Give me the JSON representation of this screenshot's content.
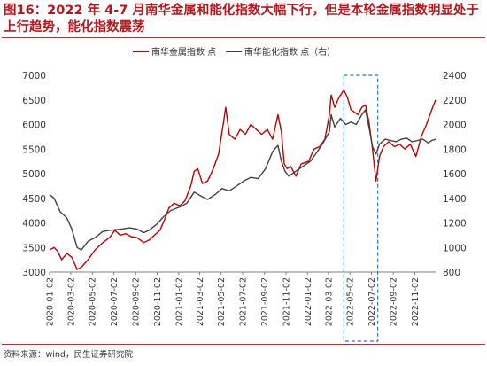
{
  "title": "图16：2022 年 4-7 月南华金属和能化指数大幅下行，但是本轮金属指数明显处于上行趋势，能化指数震荡",
  "source": "资料来源：wind，民生证券研究院",
  "chart_data": {
    "type": "line",
    "title": "图16：2022 年 4-7 月南华金属和能化指数大幅下行，但是本轮金属指数明显处于上行趋势，能化指数震荡",
    "xlabel": "",
    "ylabel": "",
    "x_ticks": [
      "2020-01-02",
      "2020-03-02",
      "2020-05-02",
      "2020-07-02",
      "2020-09-02",
      "2020-11-02",
      "2021-01-02",
      "2021-03-02",
      "2021-05-02",
      "2021-07-02",
      "2021-09-02",
      "2021-11-02",
      "2022-01-02",
      "2022-03-02",
      "2022-05-02",
      "2022-07-02",
      "2022-09-02",
      "2022-11-02"
    ],
    "x_range": [
      "2020-01-02",
      "2022-12-31"
    ],
    "y_left": {
      "ticks": [
        3000,
        3500,
        4000,
        4500,
        5000,
        5500,
        6000,
        6500,
        7000
      ],
      "range": [
        3000,
        7000
      ]
    },
    "y_right": {
      "ticks": [
        800,
        1000,
        1200,
        1400,
        1600,
        1800,
        2000,
        2200,
        2400
      ],
      "range": [
        800,
        2400
      ]
    },
    "grid": false,
    "legend_placement": "top",
    "highlight_box": {
      "x_start": "2022-04-15",
      "x_end": "2022-07-20",
      "color": "#2e75b6",
      "style": "dashed"
    },
    "series": [
      {
        "name": "南华金属指数 点",
        "axis": "left",
        "color": "#c00000",
        "points": [
          [
            "2020-01-02",
            3450
          ],
          [
            "2020-01-15",
            3500
          ],
          [
            "2020-01-25",
            3420
          ],
          [
            "2020-02-05",
            3250
          ],
          [
            "2020-02-20",
            3380
          ],
          [
            "2020-03-05",
            3300
          ],
          [
            "2020-03-20",
            3050
          ],
          [
            "2020-04-01",
            3100
          ],
          [
            "2020-04-20",
            3250
          ],
          [
            "2020-05-10",
            3450
          ],
          [
            "2020-06-01",
            3600
          ],
          [
            "2020-06-20",
            3700
          ],
          [
            "2020-07-05",
            3850
          ],
          [
            "2020-07-20",
            3750
          ],
          [
            "2020-08-05",
            3780
          ],
          [
            "2020-08-20",
            3720
          ],
          [
            "2020-09-05",
            3700
          ],
          [
            "2020-09-25",
            3600
          ],
          [
            "2020-10-10",
            3650
          ],
          [
            "2020-10-25",
            3750
          ],
          [
            "2020-11-10",
            3850
          ],
          [
            "2020-11-25",
            4100
          ],
          [
            "2020-12-05",
            4300
          ],
          [
            "2020-12-20",
            4400
          ],
          [
            "2021-01-05",
            4350
          ],
          [
            "2021-01-20",
            4450
          ],
          [
            "2021-02-05",
            4750
          ],
          [
            "2021-02-15",
            5050
          ],
          [
            "2021-02-25",
            5100
          ],
          [
            "2021-03-10",
            4800
          ],
          [
            "2021-03-25",
            4850
          ],
          [
            "2021-04-10",
            5100
          ],
          [
            "2021-04-25",
            5400
          ],
          [
            "2021-05-10",
            6100
          ],
          [
            "2021-05-15",
            6350
          ],
          [
            "2021-05-25",
            5800
          ],
          [
            "2021-06-10",
            5700
          ],
          [
            "2021-06-25",
            5900
          ],
          [
            "2021-07-10",
            5800
          ],
          [
            "2021-07-25",
            6000
          ],
          [
            "2021-08-10",
            5900
          ],
          [
            "2021-08-25",
            5800
          ],
          [
            "2021-09-10",
            5900
          ],
          [
            "2021-09-25",
            5700
          ],
          [
            "2021-10-10",
            6200
          ],
          [
            "2021-10-20",
            5850
          ],
          [
            "2021-10-28",
            5200
          ],
          [
            "2021-11-05",
            5100
          ],
          [
            "2021-11-15",
            5150
          ],
          [
            "2021-11-30",
            4950
          ],
          [
            "2021-12-15",
            5200
          ],
          [
            "2022-01-05",
            5250
          ],
          [
            "2022-01-20",
            5500
          ],
          [
            "2022-02-05",
            5550
          ],
          [
            "2022-02-20",
            5700
          ],
          [
            "2022-03-05",
            6200
          ],
          [
            "2022-03-10",
            6600
          ],
          [
            "2022-03-20",
            6350
          ],
          [
            "2022-04-01",
            6550
          ],
          [
            "2022-04-15",
            6700
          ],
          [
            "2022-04-25",
            6550
          ],
          [
            "2022-05-05",
            6300
          ],
          [
            "2022-05-15",
            6250
          ],
          [
            "2022-05-25",
            6200
          ],
          [
            "2022-06-05",
            6350
          ],
          [
            "2022-06-15",
            6400
          ],
          [
            "2022-06-25",
            6050
          ],
          [
            "2022-07-05",
            5500
          ],
          [
            "2022-07-15",
            4850
          ],
          [
            "2022-07-25",
            5350
          ],
          [
            "2022-08-05",
            5550
          ],
          [
            "2022-08-20",
            5650
          ],
          [
            "2022-09-05",
            5550
          ],
          [
            "2022-09-20",
            5600
          ],
          [
            "2022-10-05",
            5500
          ],
          [
            "2022-10-20",
            5600
          ],
          [
            "2022-11-05",
            5350
          ],
          [
            "2022-11-20",
            5750
          ],
          [
            "2022-12-05",
            6000
          ],
          [
            "2022-12-20",
            6300
          ],
          [
            "2022-12-31",
            6500
          ]
        ]
      },
      {
        "name": "南华能化指数 点（右）",
        "axis": "right",
        "color": "#404040",
        "points": [
          [
            "2020-01-02",
            1430
          ],
          [
            "2020-01-15",
            1400
          ],
          [
            "2020-02-01",
            1290
          ],
          [
            "2020-02-20",
            1240
          ],
          [
            "2020-03-05",
            1150
          ],
          [
            "2020-03-20",
            1000
          ],
          [
            "2020-04-01",
            980
          ],
          [
            "2020-04-20",
            1050
          ],
          [
            "2020-05-10",
            1080
          ],
          [
            "2020-06-01",
            1130
          ],
          [
            "2020-06-20",
            1140
          ],
          [
            "2020-07-10",
            1145
          ],
          [
            "2020-07-25",
            1150
          ],
          [
            "2020-08-15",
            1160
          ],
          [
            "2020-09-05",
            1150
          ],
          [
            "2020-09-25",
            1120
          ],
          [
            "2020-10-10",
            1140
          ],
          [
            "2020-11-01",
            1190
          ],
          [
            "2020-11-20",
            1250
          ],
          [
            "2020-12-10",
            1300
          ],
          [
            "2021-01-05",
            1330
          ],
          [
            "2021-01-25",
            1360
          ],
          [
            "2021-02-15",
            1450
          ],
          [
            "2021-03-05",
            1420
          ],
          [
            "2021-03-25",
            1390
          ],
          [
            "2021-04-15",
            1430
          ],
          [
            "2021-05-05",
            1480
          ],
          [
            "2021-05-25",
            1460
          ],
          [
            "2021-06-15",
            1500
          ],
          [
            "2021-07-05",
            1540
          ],
          [
            "2021-07-25",
            1570
          ],
          [
            "2021-08-15",
            1560
          ],
          [
            "2021-09-05",
            1640
          ],
          [
            "2021-09-25",
            1780
          ],
          [
            "2021-10-10",
            1830
          ],
          [
            "2021-10-20",
            1700
          ],
          [
            "2021-10-30",
            1620
          ],
          [
            "2021-11-10",
            1580
          ],
          [
            "2021-11-30",
            1620
          ],
          [
            "2021-12-20",
            1660
          ],
          [
            "2022-01-10",
            1700
          ],
          [
            "2022-01-30",
            1780
          ],
          [
            "2022-02-15",
            1850
          ],
          [
            "2022-03-05",
            1940
          ],
          [
            "2022-03-10",
            2080
          ],
          [
            "2022-03-20",
            1980
          ],
          [
            "2022-04-05",
            2050
          ],
          [
            "2022-04-20",
            2000
          ],
          [
            "2022-05-05",
            2020
          ],
          [
            "2022-05-20",
            2000
          ],
          [
            "2022-06-05",
            2080
          ],
          [
            "2022-06-15",
            2120
          ],
          [
            "2022-06-25",
            1980
          ],
          [
            "2022-07-05",
            1820
          ],
          [
            "2022-07-15",
            1760
          ],
          [
            "2022-07-25",
            1840
          ],
          [
            "2022-08-10",
            1880
          ],
          [
            "2022-08-25",
            1870
          ],
          [
            "2022-09-10",
            1860
          ],
          [
            "2022-09-25",
            1880
          ],
          [
            "2022-10-10",
            1890
          ],
          [
            "2022-10-25",
            1860
          ],
          [
            "2022-11-10",
            1870
          ],
          [
            "2022-11-25",
            1880
          ],
          [
            "2022-12-10",
            1850
          ],
          [
            "2022-12-20",
            1870
          ],
          [
            "2022-12-31",
            1880
          ]
        ]
      }
    ]
  }
}
